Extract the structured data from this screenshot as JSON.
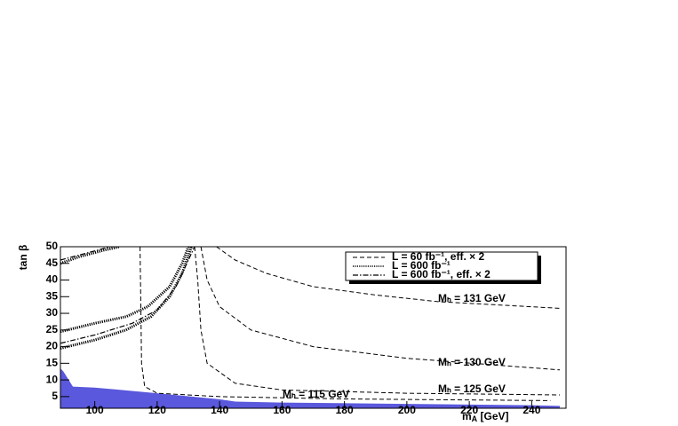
{
  "chart_data": {
    "type": "line",
    "ylabel": "tan β",
    "xlabel": "m",
    "xlabel_sub": "A",
    "xlabel_rest": " [GeV]",
    "xlim": [
      89,
      251
    ],
    "ylim": [
      1.5,
      50
    ],
    "xticks": [
      100,
      120,
      140,
      160,
      180,
      200,
      220,
      240
    ],
    "yticks": [
      5,
      10,
      15,
      20,
      25,
      30,
      35,
      40,
      45,
      50
    ],
    "legend": "top-right",
    "series": [
      {
        "fill": true,
        "color": "#5a58dc",
        "x": [
          89,
          90,
          91,
          92,
          93,
          100,
          120,
          140,
          145,
          160,
          200,
          240,
          249
        ],
        "values": [
          13.5,
          12.5,
          11,
          9.5,
          8,
          7.7,
          6,
          4.2,
          3.5,
          3.2,
          2.8,
          2.4,
          2.2
        ]
      },
      {
        "name": "L = 60 fb⁻¹, eff. × 2",
        "style": "dashed",
        "color": "#000000",
        "x": [
          114.5,
          114.8,
          115,
          116,
          120,
          140,
          180,
          246,
          null,
          132,
          133,
          134,
          136,
          145,
          160,
          200,
          249,
          null,
          134,
          136,
          140,
          150,
          170,
          200,
          249,
          null,
          139,
          145,
          155,
          170,
          190,
          210,
          249
        ],
        "values": [
          50,
          30,
          15,
          8,
          6,
          5,
          4.3,
          3.8,
          null,
          50,
          40,
          25,
          15,
          9,
          7,
          6,
          5.5,
          null,
          50,
          40,
          32,
          25,
          20,
          16.5,
          13,
          null,
          50,
          46,
          42,
          38,
          35.5,
          33.5,
          31.5
        ]
      },
      {
        "name": "L = 600 fb⁻¹",
        "style": "dotted",
        "color": "#000000",
        "x": [
          89,
          100,
          110,
          118,
          124,
          128,
          131,
          null,
          89,
          100,
          110,
          117,
          124,
          128,
          130,
          null,
          89,
          95,
          103,
          108
        ],
        "values": [
          19.5,
          22,
          25,
          29,
          35,
          42,
          50,
          null,
          24.5,
          27,
          29,
          32,
          38,
          45,
          50,
          null,
          45,
          47,
          49,
          50
        ]
      },
      {
        "name": "L = 600 fb⁻¹, eff. × 2",
        "style": "dashdot",
        "color": "#000000",
        "x": [
          89,
          100,
          112,
          120,
          126,
          130,
          132,
          null,
          89,
          97,
          105
        ],
        "values": [
          21,
          23.5,
          27,
          31,
          38,
          46,
          50,
          null,
          46,
          48,
          50
        ]
      }
    ],
    "annotations": [
      "Mₕ = 131 GeV",
      "Mₕ = 130 GeV",
      "Mₕ = 125 GeV",
      "Mₕ = 115 GeV"
    ]
  }
}
